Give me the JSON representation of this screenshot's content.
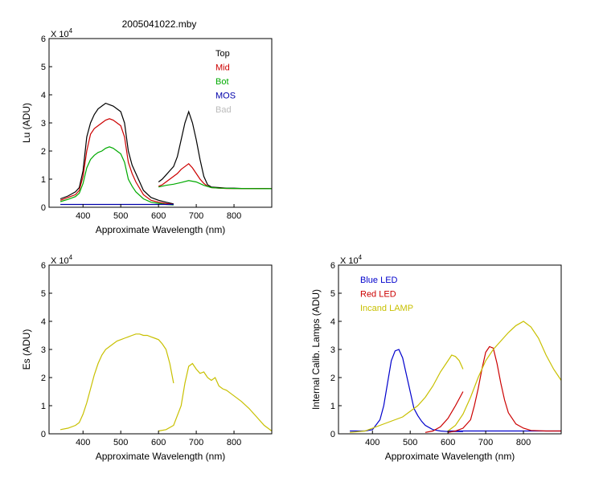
{
  "figure_title": "2005041022.mby",
  "chart_data": [
    {
      "type": "line",
      "id": "lu",
      "xlabel": "Approximate Wavelength (nm)",
      "ylabel": "Lu (ADU)",
      "scale_label": "X 10",
      "scale_exp": "4",
      "xlim": [
        310,
        900
      ],
      "ylim": [
        0,
        6
      ],
      "xticks": [
        400,
        500,
        600,
        700,
        800
      ],
      "yticks": [
        0,
        1,
        2,
        3,
        4,
        5,
        6
      ],
      "legend_position": "top-right",
      "legend": [
        {
          "label": "Top",
          "color": "#000000"
        },
        {
          "label": "Mid",
          "color": "#cc0000"
        },
        {
          "label": "Bot",
          "color": "#00aa00"
        },
        {
          "label": "MOS",
          "color": "#0000aa"
        },
        {
          "label": "Bad",
          "color": "#bbbbbb"
        }
      ],
      "series": [
        {
          "name": "Top",
          "color": "#000000",
          "segments": [
            {
              "x": [
                340,
                360,
                380,
                390,
                400,
                410,
                420,
                430,
                440,
                450,
                460,
                470,
                480,
                490,
                500,
                510,
                520,
                530,
                540,
                560,
                580,
                600,
                620,
                640
              ],
              "y": [
                0.3,
                0.4,
                0.55,
                0.7,
                1.3,
                2.5,
                3.0,
                3.3,
                3.5,
                3.6,
                3.7,
                3.65,
                3.6,
                3.5,
                3.4,
                3.0,
                2.0,
                1.5,
                1.2,
                0.6,
                0.35,
                0.25,
                0.18,
                0.12
              ]
            },
            {
              "x": [
                600,
                610,
                620,
                630,
                640,
                650,
                660,
                670,
                680,
                690,
                700,
                710,
                720,
                730,
                740,
                760,
                780,
                800,
                820,
                840,
                860,
                880,
                900
              ],
              "y": [
                0.9,
                1.0,
                1.15,
                1.3,
                1.45,
                1.8,
                2.4,
                3.0,
                3.4,
                3.0,
                2.4,
                1.7,
                1.1,
                0.8,
                0.72,
                0.7,
                0.68,
                0.68,
                0.67,
                0.67,
                0.67,
                0.67,
                0.66
              ]
            }
          ]
        },
        {
          "name": "Mid",
          "color": "#cc0000",
          "segments": [
            {
              "x": [
                340,
                360,
                380,
                390,
                400,
                410,
                420,
                430,
                440,
                450,
                460,
                470,
                480,
                490,
                500,
                510,
                520,
                530,
                540,
                560,
                580,
                600,
                620,
                640
              ],
              "y": [
                0.25,
                0.35,
                0.45,
                0.6,
                1.1,
                2.0,
                2.6,
                2.8,
                2.9,
                3.0,
                3.1,
                3.15,
                3.1,
                3.0,
                2.9,
                2.5,
                1.6,
                1.2,
                0.9,
                0.45,
                0.25,
                0.18,
                0.13,
                0.1
              ]
            },
            {
              "x": [
                600,
                610,
                620,
                630,
                640,
                650,
                660,
                670,
                680,
                690,
                700,
                710,
                720,
                730,
                740,
                760,
                780,
                800,
                840,
                900
              ],
              "y": [
                0.75,
                0.8,
                0.9,
                1.0,
                1.1,
                1.2,
                1.35,
                1.45,
                1.55,
                1.4,
                1.2,
                1.0,
                0.85,
                0.75,
                0.7,
                0.68,
                0.67,
                0.67,
                0.67,
                0.66
              ]
            }
          ]
        },
        {
          "name": "Bot",
          "color": "#00aa00",
          "segments": [
            {
              "x": [
                340,
                360,
                380,
                390,
                400,
                410,
                420,
                430,
                440,
                450,
                460,
                470,
                480,
                490,
                500,
                510,
                520,
                530,
                540,
                560,
                580,
                600,
                620,
                640
              ],
              "y": [
                0.2,
                0.28,
                0.38,
                0.5,
                0.85,
                1.4,
                1.7,
                1.85,
                1.95,
                2.0,
                2.1,
                2.15,
                2.1,
                2.0,
                1.9,
                1.6,
                1.0,
                0.75,
                0.55,
                0.3,
                0.18,
                0.14,
                0.1,
                0.08
              ]
            },
            {
              "x": [
                600,
                620,
                640,
                660,
                680,
                700,
                720,
                740,
                760,
                800,
                900
              ],
              "y": [
                0.72,
                0.78,
                0.82,
                0.88,
                0.95,
                0.9,
                0.78,
                0.7,
                0.68,
                0.67,
                0.66
              ]
            }
          ]
        },
        {
          "name": "MOS",
          "color": "#0000aa",
          "segments": [
            {
              "x": [
                340,
                400,
                500,
                600,
                640
              ],
              "y": [
                0.1,
                0.1,
                0.1,
                0.1,
                0.1
              ]
            }
          ]
        }
      ]
    },
    {
      "type": "line",
      "id": "es",
      "xlabel": "Approximate Wavelength (nm)",
      "ylabel": "Es (ADU)",
      "scale_label": "X 10",
      "scale_exp": "4",
      "xlim": [
        310,
        900
      ],
      "ylim": [
        0,
        6
      ],
      "xticks": [
        400,
        500,
        600,
        700,
        800
      ],
      "yticks": [
        0,
        1,
        2,
        3,
        4,
        5,
        6
      ],
      "series": [
        {
          "color": "#c8c000",
          "segments": [
            {
              "x": [
                340,
                360,
                380,
                390,
                400,
                410,
                420,
                430,
                440,
                450,
                460,
                470,
                480,
                490,
                500,
                510,
                520,
                530,
                540,
                550,
                560,
                570,
                580,
                590,
                600,
                610,
                620,
                630,
                640
              ],
              "y": [
                0.15,
                0.2,
                0.3,
                0.4,
                0.7,
                1.1,
                1.6,
                2.1,
                2.5,
                2.8,
                3.0,
                3.1,
                3.2,
                3.3,
                3.35,
                3.4,
                3.45,
                3.5,
                3.55,
                3.55,
                3.5,
                3.5,
                3.45,
                3.4,
                3.35,
                3.2,
                3.0,
                2.5,
                1.8
              ]
            },
            {
              "x": [
                600,
                620,
                640,
                660,
                670,
                680,
                690,
                700,
                710,
                720,
                730,
                740,
                750,
                760,
                770,
                780,
                790,
                800,
                820,
                840,
                860,
                880,
                900
              ],
              "y": [
                0.1,
                0.15,
                0.3,
                1.0,
                1.8,
                2.4,
                2.5,
                2.3,
                2.15,
                2.2,
                2.0,
                1.9,
                2.0,
                1.7,
                1.6,
                1.55,
                1.45,
                1.35,
                1.15,
                0.9,
                0.6,
                0.3,
                0.1
              ]
            }
          ]
        }
      ]
    },
    {
      "type": "line",
      "id": "lamps",
      "xlabel": "Approximate Wavelength (nm)",
      "ylabel": "Internal Calib. Lamps (ADU)",
      "scale_label": "X 10",
      "scale_exp": "4",
      "xlim": [
        310,
        900
      ],
      "ylim": [
        0,
        6
      ],
      "xticks": [
        400,
        500,
        600,
        700,
        800
      ],
      "yticks": [
        0,
        1,
        2,
        3,
        4,
        5,
        6
      ],
      "legend_position": "top-left",
      "legend": [
        {
          "label": "Blue LED",
          "color": "#0000cc"
        },
        {
          "label": "Red LED",
          "color": "#cc0000"
        },
        {
          "label": "Incand LAMP",
          "color": "#c8c000"
        }
      ],
      "series": [
        {
          "name": "Blue LED",
          "color": "#0000cc",
          "segments": [
            {
              "x": [
                340,
                380,
                400,
                420,
                430,
                440,
                450,
                460,
                470,
                480,
                490,
                500,
                510,
                520,
                530,
                540,
                560,
                580,
                600,
                640
              ],
              "y": [
                0.1,
                0.1,
                0.15,
                0.5,
                1.0,
                1.8,
                2.6,
                2.95,
                3.0,
                2.7,
                2.1,
                1.5,
                0.9,
                0.65,
                0.45,
                0.3,
                0.15,
                0.1,
                0.08,
                0.08
              ]
            },
            {
              "x": [
                600,
                700,
                800,
                900
              ],
              "y": [
                0.1,
                0.1,
                0.1,
                0.1
              ]
            }
          ]
        },
        {
          "name": "Red LED",
          "color": "#cc0000",
          "segments": [
            {
              "x": [
                540,
                560,
                580,
                600,
                620,
                640
              ],
              "y": [
                0.05,
                0.1,
                0.25,
                0.55,
                1.0,
                1.5
              ]
            },
            {
              "x": [
                600,
                620,
                640,
                660,
                670,
                680,
                690,
                700,
                710,
                720,
                730,
                740,
                750,
                760,
                780,
                800,
                820,
                860,
                900
              ],
              "y": [
                0.05,
                0.1,
                0.2,
                0.5,
                1.0,
                1.6,
                2.3,
                2.9,
                3.1,
                3.05,
                2.5,
                1.8,
                1.2,
                0.75,
                0.35,
                0.2,
                0.12,
                0.1,
                0.1
              ]
            }
          ]
        },
        {
          "name": "Incand LAMP",
          "color": "#c8c000",
          "segments": [
            {
              "x": [
                340,
                380,
                400,
                420,
                440,
                460,
                480,
                500,
                520,
                540,
                560,
                580,
                600,
                610,
                620,
                630,
                640
              ],
              "y": [
                0.05,
                0.1,
                0.2,
                0.3,
                0.4,
                0.5,
                0.6,
                0.8,
                1.0,
                1.3,
                1.7,
                2.2,
                2.6,
                2.8,
                2.75,
                2.6,
                2.3
              ]
            },
            {
              "x": [
                600,
                620,
                640,
                660,
                680,
                700,
                720,
                740,
                760,
                780,
                800,
                820,
                840,
                860,
                880,
                900
              ],
              "y": [
                0.1,
                0.3,
                0.7,
                1.3,
                2.0,
                2.6,
                3.0,
                3.3,
                3.6,
                3.85,
                4.0,
                3.8,
                3.4,
                2.8,
                2.3,
                1.9
              ]
            }
          ]
        }
      ]
    }
  ]
}
